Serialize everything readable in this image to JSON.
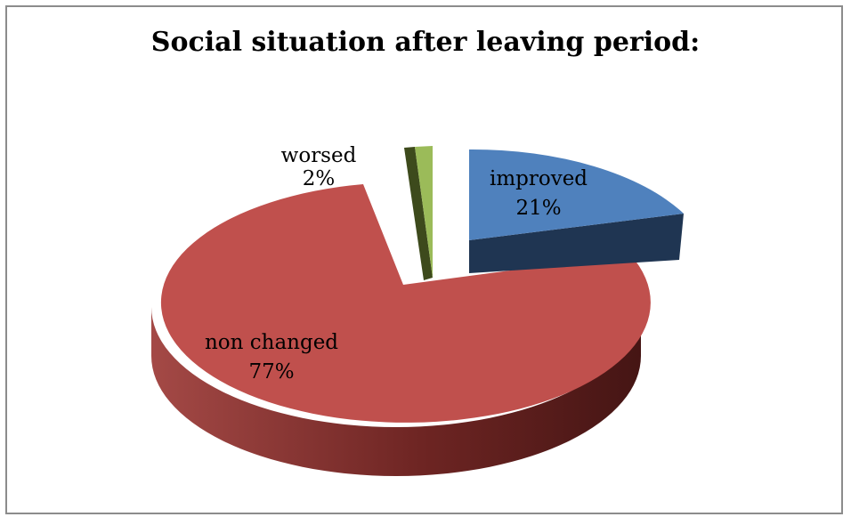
{
  "chart_data": {
    "type": "pie",
    "title": "Social situation after leaving period:",
    "slices": [
      {
        "label": "improved",
        "pct_label": "21%",
        "value": 21,
        "color": "#4f81bd"
      },
      {
        "label": "non changed",
        "pct_label": "77%",
        "value": 77,
        "color": "#c0504d"
      },
      {
        "label": "worsed",
        "pct_label": "2%",
        "value": 2,
        "color": "#9bbb59"
      }
    ],
    "exploded": true,
    "style": "3d",
    "legend": "none"
  }
}
